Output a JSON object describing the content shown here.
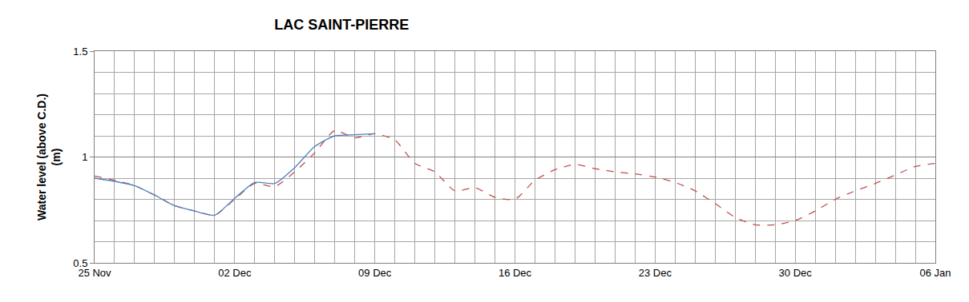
{
  "chart_data": {
    "type": "line",
    "title": "LAC SAINT-PIERRE",
    "y_label": "Water level (above C.D.)\n(m)",
    "categories": [
      "25 Nov",
      null,
      null,
      null,
      null,
      null,
      null,
      "02 Dec",
      null,
      null,
      null,
      null,
      null,
      null,
      "09 Dec",
      null,
      null,
      null,
      null,
      null,
      null,
      "16 Dec",
      null,
      null,
      null,
      null,
      null,
      null,
      "23 Dec",
      null,
      null,
      null,
      null,
      null,
      null,
      "30 Dec",
      null,
      null,
      null,
      null,
      null,
      null,
      "06 Jan"
    ],
    "series": [
      {
        "color": "#c0504d",
        "line_style": "dashed",
        "values": [
          0.91,
          0.89,
          0.865,
          0.82,
          0.77,
          0.745,
          0.725,
          0.8,
          0.875,
          0.86,
          0.93,
          1.02,
          1.125,
          1.09,
          1.11,
          1.08,
          0.97,
          0.93,
          0.84,
          0.855,
          0.81,
          0.8,
          0.89,
          0.94,
          0.965,
          0.945,
          0.93,
          0.92,
          0.905,
          0.88,
          0.84,
          0.78,
          0.715,
          0.68,
          0.68,
          0.7,
          0.745,
          0.8,
          0.84,
          0.875,
          0.915,
          0.955,
          0.97
        ]
      },
      {
        "color": "#4f81bd",
        "line_style": "solid",
        "values": [
          0.9,
          0.885,
          0.865,
          0.82,
          0.77,
          0.745,
          0.725,
          0.805,
          0.88,
          0.875,
          0.95,
          1.05,
          1.1,
          1.105,
          1.11,
          null,
          null,
          null,
          null,
          null,
          null,
          null,
          null,
          null,
          null,
          null,
          null,
          null,
          null,
          null,
          null,
          null,
          null,
          null,
          null,
          null,
          null,
          null,
          null,
          null,
          null,
          null,
          null
        ]
      }
    ],
    "ylim": [
      0.5,
      1.5
    ],
    "yticks": [
      0.5,
      1,
      1.5
    ],
    "grid": true
  }
}
